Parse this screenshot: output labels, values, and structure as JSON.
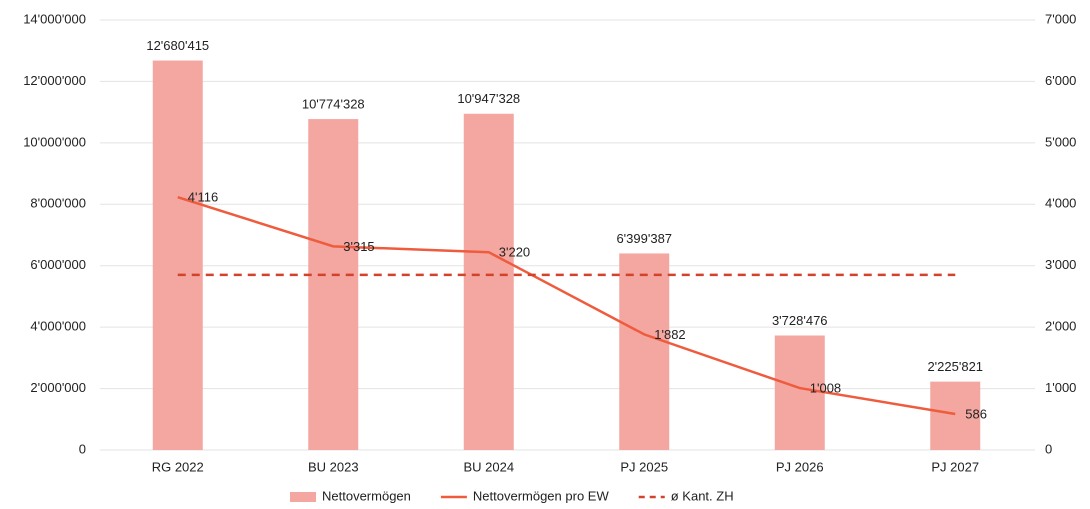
{
  "chart_data": {
    "type": "bar",
    "categories": [
      "RG 2022",
      "BU 2023",
      "BU 2024",
      "PJ 2025",
      "PJ 2026",
      "PJ 2027"
    ],
    "series": [
      {
        "name": "Nettovermögen",
        "type": "bar",
        "color": "#f4a7a1",
        "values": [
          12680415,
          10774328,
          10947328,
          6399387,
          3728476,
          2225821
        ],
        "value_labels": [
          "12'680'415",
          "10'774'328",
          "10'947'328",
          "6'399'387",
          "3'728'476",
          "2'225'821"
        ]
      },
      {
        "name": "Nettovermögen pro EW",
        "type": "line",
        "axis": "y2",
        "color": "#ef5b3d",
        "values": [
          4116,
          3315,
          3220,
          1882,
          1008,
          586
        ],
        "value_labels": [
          "4'116",
          "3'315",
          "3'220",
          "1'882",
          "1'008",
          "586"
        ]
      },
      {
        "name": "ø Kant. ZH",
        "type": "line",
        "axis": "y2",
        "dashed": true,
        "color": "#d2432c",
        "values": [
          2850,
          2850,
          2850,
          2850,
          2850,
          2850
        ]
      }
    ],
    "ylim": [
      0,
      14000000
    ],
    "yticks": [
      0,
      {
        "value": 2000000,
        "label": "2'000'000"
      },
      {
        "value": 4000000,
        "label": "4'000'000"
      },
      {
        "value": 6000000,
        "label": "6'000'000"
      },
      {
        "value": 8000000,
        "label": "8'000'000"
      },
      {
        "value": 10000000,
        "label": "10'000'000"
      },
      {
        "value": 12000000,
        "label": "12'000'000"
      },
      {
        "value": 14000000,
        "label": "14'000'000"
      }
    ],
    "y2lim": [
      0,
      7000
    ],
    "y2ticks": [
      0,
      {
        "value": 1000,
        "label": "1'000"
      },
      {
        "value": 2000,
        "label": "2'000"
      },
      {
        "value": 3000,
        "label": "3'000"
      },
      {
        "value": 4000,
        "label": "4'000"
      },
      {
        "value": 5000,
        "label": "5'000"
      },
      {
        "value": 6000,
        "label": "6'000"
      },
      {
        "value": 7000,
        "label": "7'000"
      }
    ],
    "grid": true,
    "legend": "bottom"
  }
}
